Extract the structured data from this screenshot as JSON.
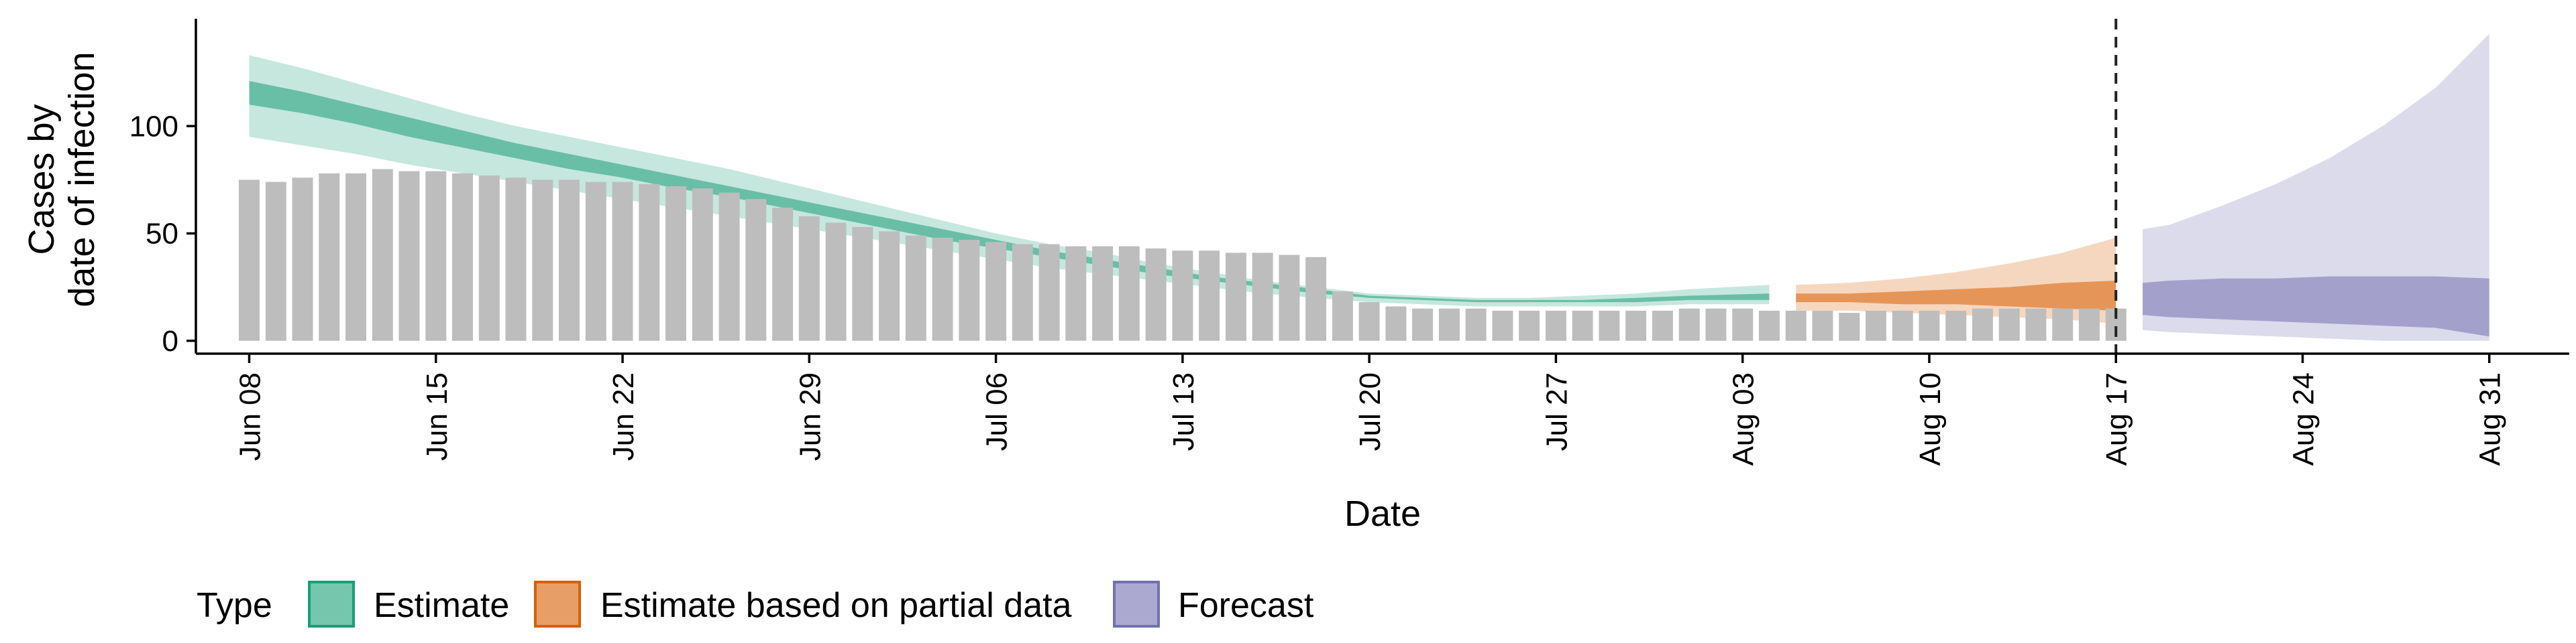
{
  "chart_data": {
    "type": "bar",
    "xlabel": "Date",
    "ylabel": [
      "Cases by",
      "date of infection"
    ],
    "ylim": [
      -6,
      150
    ],
    "ytick_values": [
      0,
      50,
      100
    ],
    "ytick_labels": [
      "0",
      "50",
      "100"
    ],
    "xtick_labels": [
      "Jun 08",
      "Jun 15",
      "Jun 22",
      "Jun 29",
      "Jul 06",
      "Jul 13",
      "Jul 20",
      "Jul 27",
      "Aug 03",
      "Aug 10",
      "Aug 17",
      "Aug 24",
      "Aug 31"
    ],
    "xtick_dates": [
      "2020-06-08",
      "2020-06-15",
      "2020-06-22",
      "2020-06-29",
      "2020-07-06",
      "2020-07-13",
      "2020-07-20",
      "2020-07-27",
      "2020-08-03",
      "2020-08-10",
      "2020-08-17",
      "2020-08-24",
      "2020-08-31"
    ],
    "xlim": [
      "2020-06-06",
      "2020-09-03"
    ],
    "grid": false,
    "legend_position": "bottom-left",
    "reference_line": {
      "date": "2020-08-17",
      "style": "dashed",
      "color": "#222222"
    },
    "bars": {
      "color": "#bdbdbd",
      "dates": [
        "2020-06-08",
        "2020-06-09",
        "2020-06-10",
        "2020-06-11",
        "2020-06-12",
        "2020-06-13",
        "2020-06-14",
        "2020-06-15",
        "2020-06-16",
        "2020-06-17",
        "2020-06-18",
        "2020-06-19",
        "2020-06-20",
        "2020-06-21",
        "2020-06-22",
        "2020-06-23",
        "2020-06-24",
        "2020-06-25",
        "2020-06-26",
        "2020-06-27",
        "2020-06-28",
        "2020-06-29",
        "2020-06-30",
        "2020-07-01",
        "2020-07-02",
        "2020-07-03",
        "2020-07-04",
        "2020-07-05",
        "2020-07-06",
        "2020-07-07",
        "2020-07-08",
        "2020-07-09",
        "2020-07-10",
        "2020-07-11",
        "2020-07-12",
        "2020-07-13",
        "2020-07-14",
        "2020-07-15",
        "2020-07-16",
        "2020-07-17",
        "2020-07-18",
        "2020-07-19",
        "2020-07-20",
        "2020-07-21",
        "2020-07-22",
        "2020-07-23",
        "2020-07-24",
        "2020-07-25",
        "2020-07-26",
        "2020-07-27",
        "2020-07-28",
        "2020-07-29",
        "2020-07-30",
        "2020-07-31",
        "2020-08-01",
        "2020-08-02",
        "2020-08-03",
        "2020-08-04",
        "2020-08-05",
        "2020-08-06",
        "2020-08-07",
        "2020-08-08",
        "2020-08-09",
        "2020-08-10",
        "2020-08-11",
        "2020-08-12",
        "2020-08-13",
        "2020-08-14",
        "2020-08-15",
        "2020-08-16",
        "2020-08-17"
      ],
      "values": [
        75,
        74,
        76,
        78,
        78,
        80,
        79,
        79,
        78,
        77,
        76,
        75,
        75,
        74,
        74,
        73,
        72,
        71,
        69,
        66,
        62,
        58,
        55,
        53,
        51,
        49,
        48,
        47,
        46,
        45,
        45,
        44,
        44,
        44,
        43,
        42,
        42,
        41,
        41,
        40,
        39,
        23,
        18,
        16,
        15,
        15,
        15,
        14,
        14,
        14,
        14,
        14,
        14,
        14,
        15,
        15,
        15,
        14,
        14,
        14,
        13,
        14,
        14,
        14,
        14,
        15,
        15,
        15,
        15,
        15,
        15
      ]
    },
    "series": [
      {
        "name": "Estimate",
        "color": "#1b9e77",
        "dates": [
          "2020-06-08",
          "2020-06-10",
          "2020-06-12",
          "2020-06-14",
          "2020-06-16",
          "2020-06-18",
          "2020-06-20",
          "2020-06-22",
          "2020-06-24",
          "2020-06-26",
          "2020-06-28",
          "2020-06-30",
          "2020-07-02",
          "2020-07-04",
          "2020-07-06",
          "2020-07-08",
          "2020-07-10",
          "2020-07-12",
          "2020-07-14",
          "2020-07-16",
          "2020-07-18",
          "2020-07-20",
          "2020-07-22",
          "2020-07-24",
          "2020-07-26",
          "2020-07-28",
          "2020-07-30",
          "2020-08-01",
          "2020-08-04"
        ],
        "outer_lower": [
          95,
          91,
          87,
          82,
          78,
          74,
          70,
          66,
          62,
          58,
          54,
          50,
          46,
          42,
          38,
          34,
          31,
          28,
          25,
          22,
          20,
          18,
          17,
          16,
          16,
          16,
          16,
          17,
          17
        ],
        "outer_upper": [
          133,
          127,
          120,
          113,
          106,
          100,
          95,
          90,
          85,
          80,
          74,
          68,
          62,
          56,
          50,
          45,
          41,
          36,
          32,
          28,
          25,
          22,
          21,
          20,
          20,
          21,
          22,
          24,
          26
        ],
        "inner_lower": [
          110,
          106,
          101,
          95,
          90,
          85,
          80,
          76,
          71,
          67,
          62,
          57,
          52,
          47,
          43,
          39,
          35,
          31,
          28,
          25,
          22,
          20,
          19,
          18,
          18,
          18,
          18,
          19,
          19
        ],
        "inner_upper": [
          121,
          116,
          110,
          104,
          98,
          92,
          87,
          82,
          77,
          72,
          67,
          62,
          57,
          52,
          47,
          42,
          38,
          34,
          30,
          27,
          24,
          21,
          20,
          19,
          19,
          19,
          20,
          21,
          22
        ]
      },
      {
        "name": "Estimate based on partial data",
        "color": "#d95f02",
        "dates": [
          "2020-08-05",
          "2020-08-07",
          "2020-08-09",
          "2020-08-11",
          "2020-08-13",
          "2020-08-15",
          "2020-08-17"
        ],
        "outer_lower": [
          14,
          14,
          13,
          12,
          11,
          10,
          8
        ],
        "outer_upper": [
          26,
          27,
          29,
          32,
          36,
          41,
          48
        ],
        "inner_lower": [
          18,
          18,
          17,
          17,
          16,
          15,
          14
        ],
        "inner_upper": [
          22,
          22,
          23,
          24,
          25,
          27,
          28
        ]
      },
      {
        "name": "Forecast",
        "color": "#7570b3",
        "dates": [
          "2020-08-18",
          "2020-08-19",
          "2020-08-21",
          "2020-08-23",
          "2020-08-25",
          "2020-08-27",
          "2020-08-29",
          "2020-08-31"
        ],
        "outer_lower": [
          5,
          4,
          3,
          2,
          1,
          0,
          0,
          0
        ],
        "outer_upper": [
          52,
          54,
          63,
          73,
          85,
          100,
          118,
          143
        ],
        "inner_lower": [
          12,
          11,
          10,
          9,
          8,
          7,
          6,
          2
        ],
        "inner_upper": [
          27,
          28,
          29,
          29,
          30,
          30,
          30,
          29
        ]
      }
    ],
    "legend": {
      "title": "Type",
      "items": [
        {
          "label": "Estimate",
          "color": "#1b9e77"
        },
        {
          "label": "Estimate based on partial data",
          "color": "#d95f02"
        },
        {
          "label": "Forecast",
          "color": "#7570b3"
        }
      ]
    }
  }
}
